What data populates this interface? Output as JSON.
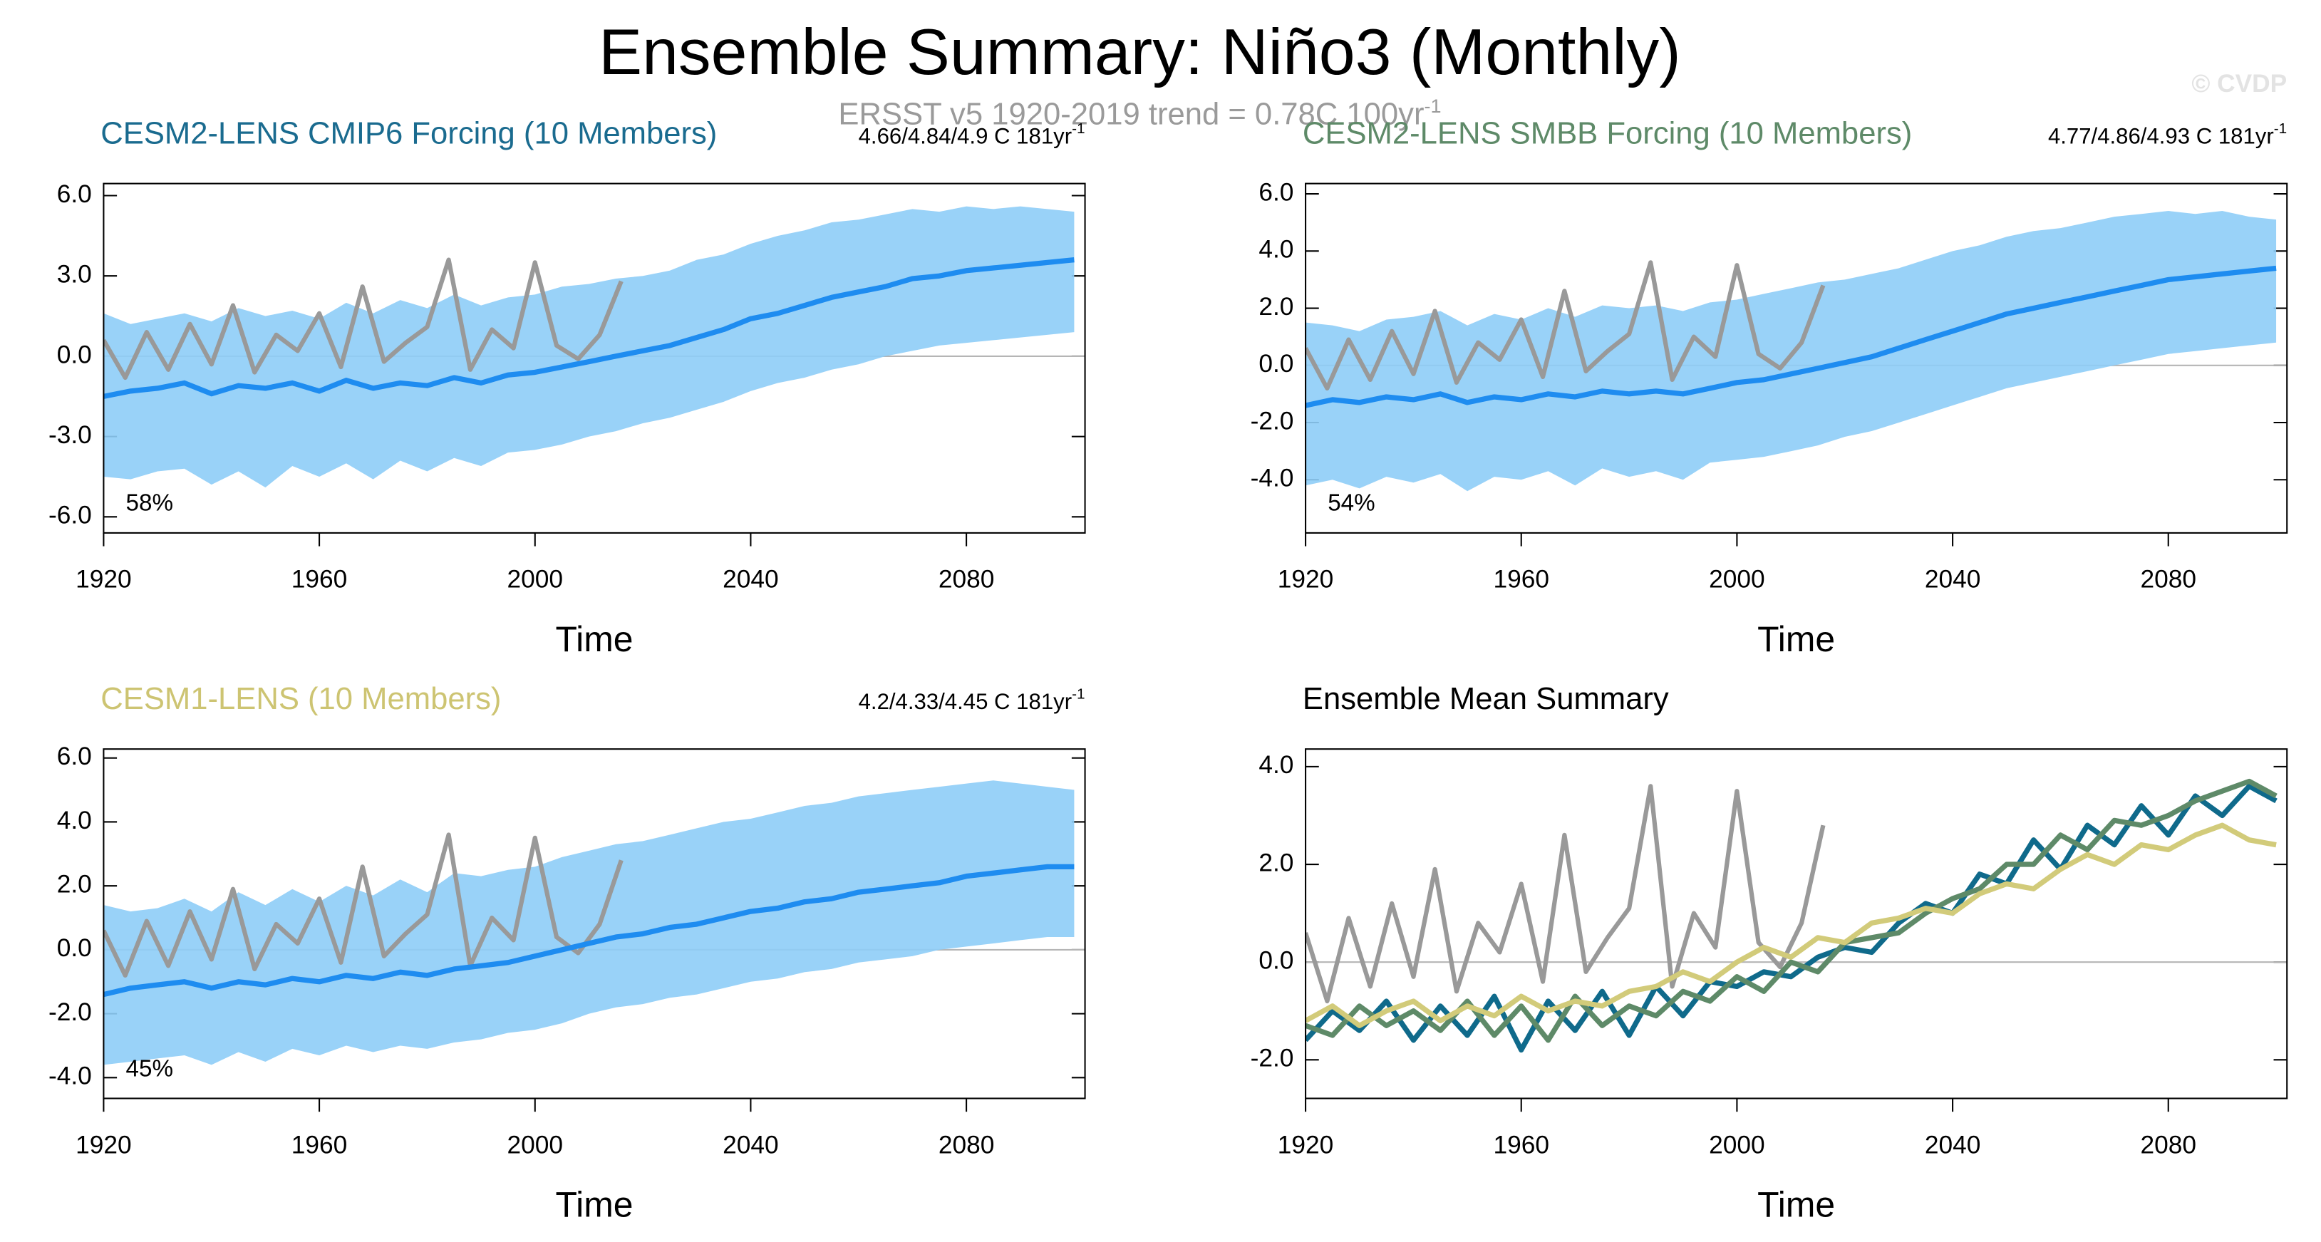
{
  "title": "Ensemble Summary: Niño3 (Monthly)",
  "subtitle": {
    "text": "ERSST v5 1920-2019 trend = 0.78C 100yr",
    "sup": "-1"
  },
  "watermark": "© CVDP",
  "chart_data": [
    {
      "type": "line",
      "title": "CESM2-LENS CMIP6 Forcing (10 Members)",
      "title_color": "#1a6b8f",
      "trend_label": {
        "text": "4.66/4.84/4.9 C 181yr",
        "sup": "-1"
      },
      "percent": "58%",
      "xlabel": "Time",
      "xlim": [
        1920,
        2102
      ],
      "xticks": [
        1920,
        1960,
        2000,
        2040,
        2080
      ],
      "ylim": [
        -6.6,
        6.45
      ],
      "yticks": [
        {
          "value": 6,
          "label": "6.0"
        },
        {
          "value": 3,
          "label": "3.0"
        },
        {
          "value": 0,
          "label": "0.0"
        },
        {
          "value": -3,
          "label": "-3.0"
        },
        {
          "value": -6,
          "label": "-6.0"
        }
      ],
      "x": [
        1920,
        1925,
        1930,
        1935,
        1940,
        1945,
        1950,
        1955,
        1960,
        1965,
        1970,
        1975,
        1980,
        1985,
        1990,
        1995,
        2000,
        2005,
        2010,
        2015,
        2020,
        2025,
        2030,
        2035,
        2040,
        2045,
        2050,
        2055,
        2060,
        2065,
        2070,
        2075,
        2080,
        2085,
        2090,
        2095,
        2100
      ],
      "band": {
        "color": "#8ecdf7",
        "lower": [
          -4.5,
          -4.6,
          -4.3,
          -4.2,
          -4.8,
          -4.3,
          -4.9,
          -4.1,
          -4.5,
          -4.0,
          -4.6,
          -3.9,
          -4.3,
          -3.8,
          -4.1,
          -3.6,
          -3.5,
          -3.3,
          -3.0,
          -2.8,
          -2.5,
          -2.3,
          -2.0,
          -1.7,
          -1.3,
          -1.0,
          -0.8,
          -0.5,
          -0.3,
          0.0,
          0.2,
          0.4,
          0.5,
          0.6,
          0.7,
          0.8,
          0.9
        ],
        "upper": [
          1.6,
          1.2,
          1.4,
          1.6,
          1.3,
          1.8,
          1.5,
          1.7,
          1.4,
          2.0,
          1.6,
          2.1,
          1.8,
          2.3,
          1.9,
          2.2,
          2.3,
          2.6,
          2.7,
          2.9,
          3.0,
          3.2,
          3.6,
          3.8,
          4.2,
          4.5,
          4.7,
          5.0,
          5.1,
          5.3,
          5.5,
          5.4,
          5.6,
          5.5,
          5.6,
          5.5,
          5.4
        ]
      },
      "obs_color": "#999999",
      "obs_x": [
        1920,
        1924,
        1928,
        1932,
        1936,
        1940,
        1944,
        1948,
        1952,
        1956,
        1960,
        1964,
        1968,
        1972,
        1976,
        1980,
        1984,
        1988,
        1992,
        1996,
        2000,
        2004,
        2008,
        2012,
        2016
      ],
      "obs_values": [
        0.6,
        -0.8,
        0.9,
        -0.5,
        1.2,
        -0.3,
        1.9,
        -0.6,
        0.8,
        0.2,
        1.6,
        -0.4,
        2.6,
        -0.2,
        0.5,
        1.1,
        3.6,
        -0.5,
        1.0,
        0.3,
        3.5,
        0.4,
        -0.1,
        0.8,
        2.8
      ],
      "series": [
        {
          "color": "#1e8cf0",
          "values": [
            -1.5,
            -1.3,
            -1.2,
            -1.0,
            -1.4,
            -1.1,
            -1.2,
            -1.0,
            -1.3,
            -0.9,
            -1.2,
            -1.0,
            -1.1,
            -0.8,
            -1.0,
            -0.7,
            -0.6,
            -0.4,
            -0.2,
            0.0,
            0.2,
            0.4,
            0.7,
            1.0,
            1.4,
            1.6,
            1.9,
            2.2,
            2.4,
            2.6,
            2.9,
            3.0,
            3.2,
            3.3,
            3.4,
            3.5,
            3.6
          ]
        }
      ]
    },
    {
      "type": "line",
      "title": "CESM2-LENS SMBB Forcing (10 Members)",
      "title_color": "#5e8a68",
      "trend_label": {
        "text": "4.77/4.86/4.93 C 181yr",
        "sup": "-1"
      },
      "percent": "54%",
      "xlabel": "Time",
      "xlim": [
        1920,
        2102
      ],
      "xticks": [
        1920,
        1960,
        2000,
        2040,
        2080
      ],
      "ylim": [
        -5.86,
        6.36
      ],
      "yticks": [
        {
          "value": 6,
          "label": "6.0"
        },
        {
          "value": 4,
          "label": "4.0"
        },
        {
          "value": 2,
          "label": "2.0"
        },
        {
          "value": 0,
          "label": "0.0"
        },
        {
          "value": -2,
          "label": "-2.0"
        },
        {
          "value": -4,
          "label": "-4.0"
        }
      ],
      "x": [
        1920,
        1925,
        1930,
        1935,
        1940,
        1945,
        1950,
        1955,
        1960,
        1965,
        1970,
        1975,
        1980,
        1985,
        1990,
        1995,
        2000,
        2005,
        2010,
        2015,
        2020,
        2025,
        2030,
        2035,
        2040,
        2045,
        2050,
        2055,
        2060,
        2065,
        2070,
        2075,
        2080,
        2085,
        2090,
        2095,
        2100
      ],
      "band": {
        "color": "#8ecdf7",
        "lower": [
          -4.2,
          -4.0,
          -4.3,
          -3.9,
          -4.1,
          -3.8,
          -4.4,
          -3.9,
          -4.0,
          -3.7,
          -4.2,
          -3.6,
          -3.9,
          -3.7,
          -4.0,
          -3.4,
          -3.3,
          -3.2,
          -3.0,
          -2.8,
          -2.5,
          -2.3,
          -2.0,
          -1.7,
          -1.4,
          -1.1,
          -0.8,
          -0.6,
          -0.4,
          -0.2,
          0.0,
          0.2,
          0.4,
          0.5,
          0.6,
          0.7,
          0.8
        ],
        "upper": [
          1.5,
          1.4,
          1.2,
          1.6,
          1.7,
          1.9,
          1.4,
          1.8,
          1.6,
          2.0,
          1.7,
          2.1,
          2.0,
          2.1,
          1.9,
          2.2,
          2.3,
          2.5,
          2.7,
          2.9,
          3.0,
          3.2,
          3.4,
          3.7,
          4.0,
          4.2,
          4.5,
          4.7,
          4.8,
          5.0,
          5.2,
          5.3,
          5.4,
          5.3,
          5.4,
          5.2,
          5.1
        ]
      },
      "obs_color": "#999999",
      "obs_x": [
        1920,
        1924,
        1928,
        1932,
        1936,
        1940,
        1944,
        1948,
        1952,
        1956,
        1960,
        1964,
        1968,
        1972,
        1976,
        1980,
        1984,
        1988,
        1992,
        1996,
        2000,
        2004,
        2008,
        2012,
        2016
      ],
      "obs_values": [
        0.6,
        -0.8,
        0.9,
        -0.5,
        1.2,
        -0.3,
        1.9,
        -0.6,
        0.8,
        0.2,
        1.6,
        -0.4,
        2.6,
        -0.2,
        0.5,
        1.1,
        3.6,
        -0.5,
        1.0,
        0.3,
        3.5,
        0.4,
        -0.1,
        0.8,
        2.8
      ],
      "series": [
        {
          "color": "#1e8cf0",
          "values": [
            -1.4,
            -1.2,
            -1.3,
            -1.1,
            -1.2,
            -1.0,
            -1.3,
            -1.1,
            -1.2,
            -1.0,
            -1.1,
            -0.9,
            -1.0,
            -0.9,
            -1.0,
            -0.8,
            -0.6,
            -0.5,
            -0.3,
            -0.1,
            0.1,
            0.3,
            0.6,
            0.9,
            1.2,
            1.5,
            1.8,
            2.0,
            2.2,
            2.4,
            2.6,
            2.8,
            3.0,
            3.1,
            3.2,
            3.3,
            3.4
          ]
        }
      ]
    },
    {
      "type": "line",
      "title": "CESM1-LENS (10 Members)",
      "title_color": "#cdc472",
      "trend_label": {
        "text": "4.2/4.33/4.45 C 181yr",
        "sup": "-1"
      },
      "percent": "45%",
      "xlabel": "Time",
      "xlim": [
        1920,
        2102
      ],
      "xticks": [
        1920,
        1960,
        2000,
        2040,
        2080
      ],
      "ylim": [
        -4.65,
        6.28
      ],
      "yticks": [
        {
          "value": 6,
          "label": "6.0"
        },
        {
          "value": 4,
          "label": "4.0"
        },
        {
          "value": 2,
          "label": "2.0"
        },
        {
          "value": 0,
          "label": "0.0"
        },
        {
          "value": -2,
          "label": "-2.0"
        },
        {
          "value": -4,
          "label": "-4.0"
        }
      ],
      "x": [
        1920,
        1925,
        1930,
        1935,
        1940,
        1945,
        1950,
        1955,
        1960,
        1965,
        1970,
        1975,
        1980,
        1985,
        1990,
        1995,
        2000,
        2005,
        2010,
        2015,
        2020,
        2025,
        2030,
        2035,
        2040,
        2045,
        2050,
        2055,
        2060,
        2065,
        2070,
        2075,
        2080,
        2085,
        2090,
        2095,
        2100
      ],
      "band": {
        "color": "#8ecdf7",
        "lower": [
          -3.6,
          -3.5,
          -3.4,
          -3.3,
          -3.6,
          -3.2,
          -3.5,
          -3.1,
          -3.3,
          -3.0,
          -3.2,
          -3.0,
          -3.1,
          -2.9,
          -2.8,
          -2.6,
          -2.5,
          -2.3,
          -2.0,
          -1.8,
          -1.7,
          -1.5,
          -1.4,
          -1.2,
          -1.0,
          -0.9,
          -0.7,
          -0.6,
          -0.4,
          -0.3,
          -0.2,
          0.0,
          0.1,
          0.2,
          0.3,
          0.4,
          0.4
        ],
        "upper": [
          1.4,
          1.2,
          1.3,
          1.6,
          1.2,
          1.8,
          1.4,
          1.9,
          1.5,
          2.0,
          1.7,
          2.2,
          1.8,
          2.4,
          2.3,
          2.5,
          2.6,
          2.9,
          3.1,
          3.3,
          3.4,
          3.6,
          3.8,
          4.0,
          4.1,
          4.3,
          4.5,
          4.6,
          4.8,
          4.9,
          5.0,
          5.1,
          5.2,
          5.3,
          5.2,
          5.1,
          5.0
        ]
      },
      "obs_color": "#999999",
      "obs_x": [
        1920,
        1924,
        1928,
        1932,
        1936,
        1940,
        1944,
        1948,
        1952,
        1956,
        1960,
        1964,
        1968,
        1972,
        1976,
        1980,
        1984,
        1988,
        1992,
        1996,
        2000,
        2004,
        2008,
        2012,
        2016
      ],
      "obs_values": [
        0.6,
        -0.8,
        0.9,
        -0.5,
        1.2,
        -0.3,
        1.9,
        -0.6,
        0.8,
        0.2,
        1.6,
        -0.4,
        2.6,
        -0.2,
        0.5,
        1.1,
        3.6,
        -0.5,
        1.0,
        0.3,
        3.5,
        0.4,
        -0.1,
        0.8,
        2.8
      ],
      "series": [
        {
          "color": "#1e8cf0",
          "values": [
            -1.4,
            -1.2,
            -1.1,
            -1.0,
            -1.2,
            -1.0,
            -1.1,
            -0.9,
            -1.0,
            -0.8,
            -0.9,
            -0.7,
            -0.8,
            -0.6,
            -0.5,
            -0.4,
            -0.2,
            0.0,
            0.2,
            0.4,
            0.5,
            0.7,
            0.8,
            1.0,
            1.2,
            1.3,
            1.5,
            1.6,
            1.8,
            1.9,
            2.0,
            2.1,
            2.3,
            2.4,
            2.5,
            2.6,
            2.6
          ]
        }
      ]
    },
    {
      "type": "line",
      "title": "Ensemble Mean Summary",
      "title_color": "#000000",
      "xlabel": "Time",
      "xlim": [
        1920,
        2102
      ],
      "xticks": [
        1920,
        1960,
        2000,
        2040,
        2080
      ],
      "ylim": [
        -2.79,
        4.36
      ],
      "yticks": [
        {
          "value": 4,
          "label": "4.0"
        },
        {
          "value": 2,
          "label": "2.0"
        },
        {
          "value": 0,
          "label": "0.0"
        },
        {
          "value": -2,
          "label": "-2.0"
        }
      ],
      "x": [
        1920,
        1925,
        1930,
        1935,
        1940,
        1945,
        1950,
        1955,
        1960,
        1965,
        1970,
        1975,
        1980,
        1985,
        1990,
        1995,
        2000,
        2005,
        2010,
        2015,
        2020,
        2025,
        2030,
        2035,
        2040,
        2045,
        2050,
        2055,
        2060,
        2065,
        2070,
        2075,
        2080,
        2085,
        2090,
        2095,
        2100
      ],
      "obs_color": "#999999",
      "obs_x": [
        1920,
        1924,
        1928,
        1932,
        1936,
        1940,
        1944,
        1948,
        1952,
        1956,
        1960,
        1964,
        1968,
        1972,
        1976,
        1980,
        1984,
        1988,
        1992,
        1996,
        2000,
        2004,
        2008,
        2012,
        2016
      ],
      "obs_values": [
        0.6,
        -0.8,
        0.9,
        -0.5,
        1.2,
        -0.3,
        1.9,
        -0.6,
        0.8,
        0.2,
        1.6,
        -0.4,
        2.6,
        -0.2,
        0.5,
        1.1,
        3.6,
        -0.5,
        1.0,
        0.3,
        3.5,
        0.4,
        -0.1,
        0.8,
        2.8
      ],
      "series": [
        {
          "color": "#0f6a8b",
          "values": [
            -1.6,
            -1.0,
            -1.4,
            -0.8,
            -1.6,
            -0.9,
            -1.5,
            -0.7,
            -1.8,
            -0.8,
            -1.4,
            -0.6,
            -1.5,
            -0.5,
            -1.1,
            -0.4,
            -0.5,
            -0.2,
            -0.3,
            0.1,
            0.3,
            0.2,
            0.8,
            1.2,
            1.0,
            1.8,
            1.6,
            2.5,
            1.9,
            2.8,
            2.4,
            3.2,
            2.6,
            3.4,
            3.0,
            3.6,
            3.3
          ]
        },
        {
          "color": "#5e8a68",
          "values": [
            -1.3,
            -1.5,
            -0.9,
            -1.3,
            -1.0,
            -1.4,
            -0.8,
            -1.5,
            -0.9,
            -1.6,
            -0.7,
            -1.3,
            -0.9,
            -1.1,
            -0.6,
            -0.8,
            -0.3,
            -0.6,
            0.0,
            -0.2,
            0.4,
            0.5,
            0.6,
            1.0,
            1.3,
            1.5,
            2.0,
            2.0,
            2.6,
            2.3,
            2.9,
            2.8,
            3.0,
            3.3,
            3.5,
            3.7,
            3.4
          ]
        },
        {
          "color": "#d2cb7a",
          "values": [
            -1.2,
            -0.9,
            -1.3,
            -1.0,
            -0.8,
            -1.2,
            -0.9,
            -1.1,
            -0.7,
            -1.0,
            -0.8,
            -0.9,
            -0.6,
            -0.5,
            -0.2,
            -0.4,
            0.0,
            0.3,
            0.1,
            0.5,
            0.4,
            0.8,
            0.9,
            1.1,
            1.0,
            1.4,
            1.6,
            1.5,
            1.9,
            2.2,
            2.0,
            2.4,
            2.3,
            2.6,
            2.8,
            2.5,
            2.4
          ]
        }
      ]
    }
  ]
}
